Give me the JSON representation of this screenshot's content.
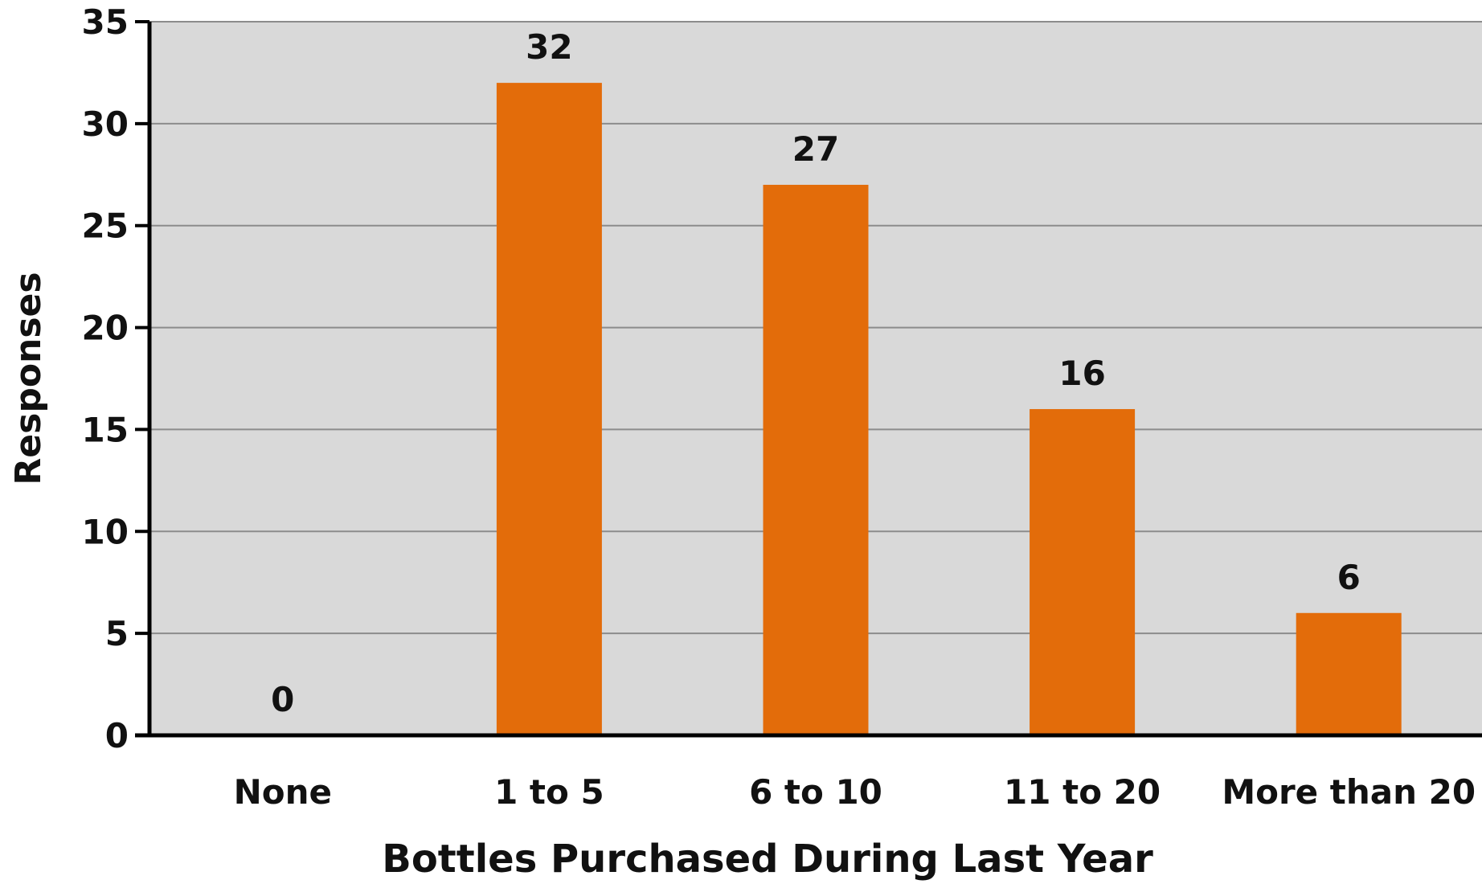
{
  "chart_data": {
    "type": "bar",
    "categories": [
      "None",
      "1 to 5",
      "6 to 10",
      "11 to 20",
      "More than 20"
    ],
    "values": [
      0,
      32,
      27,
      16,
      6
    ],
    "data_labels": [
      "0",
      "32",
      "27",
      "16",
      "6"
    ],
    "title": "",
    "xlabel": "Bottles Purchased During Last Year",
    "ylabel": "Responses",
    "ylim": [
      0,
      35
    ],
    "yticks": [
      0,
      5,
      10,
      15,
      20,
      25,
      30,
      35
    ],
    "ytick_labels": [
      "0",
      "5",
      "10",
      "15",
      "20",
      "25",
      "30",
      "35"
    ],
    "grid": true,
    "legend": "none",
    "colors": {
      "bar": "#E36C0A",
      "plot_background": "#D9D9D9",
      "gridline": "#8C8C8C",
      "axis": "#000000"
    }
  }
}
